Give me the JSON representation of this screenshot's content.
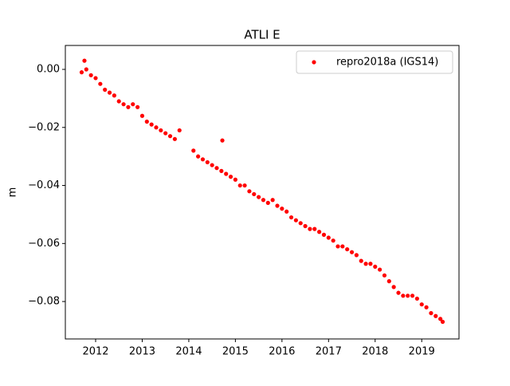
{
  "chart_data": {
    "type": "scatter",
    "title": "ATLI E",
    "ylabel": "m",
    "legend": "upper right",
    "series": [
      {
        "name": "repro2018a (IGS14)",
        "color": "#ff0000",
        "x": [
          2011.7,
          2011.76,
          2011.8,
          2011.9,
          2012.0,
          2012.1,
          2012.2,
          2012.3,
          2012.4,
          2012.5,
          2012.6,
          2012.7,
          2012.8,
          2012.9,
          2013.0,
          2013.1,
          2013.2,
          2013.3,
          2013.4,
          2013.5,
          2013.6,
          2013.7,
          2013.8,
          2014.1,
          2014.2,
          2014.3,
          2014.4,
          2014.5,
          2014.6,
          2014.7,
          2014.72,
          2014.8,
          2014.9,
          2015.0,
          2015.1,
          2015.2,
          2015.3,
          2015.4,
          2015.5,
          2015.6,
          2015.7,
          2015.8,
          2015.9,
          2016.0,
          2016.1,
          2016.2,
          2016.3,
          2016.4,
          2016.5,
          2016.6,
          2016.7,
          2016.8,
          2016.9,
          2017.0,
          2017.1,
          2017.2,
          2017.3,
          2017.4,
          2017.5,
          2017.6,
          2017.7,
          2017.8,
          2017.9,
          2018.0,
          2018.1,
          2018.2,
          2018.3,
          2018.4,
          2018.5,
          2018.6,
          2018.7,
          2018.8,
          2018.9,
          2019.0,
          2019.1,
          2019.2,
          2019.3,
          2019.4,
          2019.45
        ],
        "values": [
          -0.001,
          0.003,
          0.0,
          -0.002,
          -0.003,
          -0.005,
          -0.007,
          -0.008,
          -0.009,
          -0.011,
          -0.012,
          -0.013,
          -0.012,
          -0.013,
          -0.016,
          -0.018,
          -0.019,
          -0.02,
          -0.021,
          -0.022,
          -0.023,
          -0.024,
          -0.021,
          -0.028,
          -0.03,
          -0.031,
          -0.032,
          -0.033,
          -0.034,
          -0.035,
          -0.0245,
          -0.036,
          -0.037,
          -0.038,
          -0.04,
          -0.04,
          -0.042,
          -0.043,
          -0.044,
          -0.045,
          -0.046,
          -0.045,
          -0.047,
          -0.048,
          -0.049,
          -0.051,
          -0.052,
          -0.053,
          -0.054,
          -0.055,
          -0.055,
          -0.056,
          -0.057,
          -0.058,
          -0.059,
          -0.061,
          -0.061,
          -0.062,
          -0.063,
          -0.064,
          -0.066,
          -0.067,
          -0.067,
          -0.068,
          -0.069,
          -0.071,
          -0.073,
          -0.075,
          -0.077,
          -0.078,
          -0.078,
          -0.078,
          -0.079,
          -0.081,
          -0.082,
          -0.084,
          -0.085,
          -0.086,
          -0.087
        ]
      }
    ],
    "xlim": [
      2011.35,
      2019.8
    ],
    "ylim": [
      -0.0929,
      0.00825
    ],
    "xticks": [
      2012,
      2013,
      2014,
      2015,
      2016,
      2017,
      2018,
      2019
    ],
    "yticks": [
      {
        "value": 0,
        "label": "0.00"
      },
      {
        "value": -0.02,
        "label": "−0.02"
      },
      {
        "value": -0.04,
        "label": "−0.04"
      },
      {
        "value": -0.06,
        "label": "−0.06"
      },
      {
        "value": -0.08,
        "label": "−0.08"
      }
    ]
  }
}
